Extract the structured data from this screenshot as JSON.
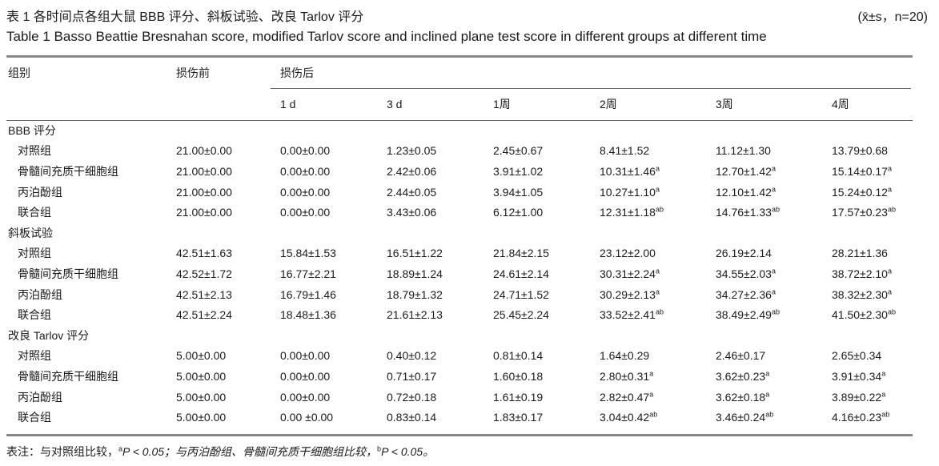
{
  "title": {
    "cn": "表 1   各时间点各组大鼠 BBB 评分、斜板试验、改良 Tarlov 评分",
    "stat": "(x̄±s，n=20)",
    "en": "Table 1   Basso Beattie Bresnahan score, modified Tarlov score and inclined plane test score in different groups at different time"
  },
  "header": {
    "group": "组别",
    "pre": "损伤前",
    "post": "损伤后",
    "times": [
      "1 d",
      "3 d",
      "1周",
      "2周",
      "3周",
      "4周"
    ]
  },
  "sections": [
    {
      "name": "BBB 评分",
      "rows": [
        {
          "group": "对照组",
          "values": [
            "21.00±0.00",
            "0.00±0.00",
            "1.23±0.05",
            "2.45±0.67",
            "8.41±1.52",
            "11.12±1.30",
            "13.79±0.68"
          ],
          "sups": [
            "",
            "",
            "",
            "",
            "",
            "",
            ""
          ]
        },
        {
          "group": "骨髓间充质干细胞组",
          "values": [
            "21.00±0.00",
            "0.00±0.00",
            "2.42±0.06",
            "3.91±1.02",
            "10.31±1.46",
            "12.70±1.42",
            "15.14±0.17"
          ],
          "sups": [
            "",
            "",
            "",
            "",
            "a",
            "a",
            "a"
          ]
        },
        {
          "group": "丙泊酚组",
          "values": [
            "21.00±0.00",
            "0.00±0.00",
            "2.44±0.05",
            "3.94±1.05",
            "10.27±1.10",
            "12.10±1.42",
            "15.24±0.12"
          ],
          "sups": [
            "",
            "",
            "",
            "",
            "a",
            "a",
            "a"
          ]
        },
        {
          "group": "联合组",
          "values": [
            "21.00±0.00",
            "0.00±0.00",
            "3.43±0.06",
            "6.12±1.00",
            "12.31±1.18",
            "14.76±1.33",
            "17.57±0.23"
          ],
          "sups": [
            "",
            "",
            "",
            "",
            "ab",
            "ab",
            "ab"
          ]
        }
      ]
    },
    {
      "name": "斜板试验",
      "rows": [
        {
          "group": "对照组",
          "values": [
            "42.51±1.63",
            "15.84±1.53",
            "16.51±1.22",
            "21.84±2.15",
            "23.12±2.00",
            "26.19±2.14",
            "28.21±1.36"
          ],
          "sups": [
            "",
            "",
            "",
            "",
            "",
            "",
            ""
          ]
        },
        {
          "group": "骨髓间充质干细胞组",
          "values": [
            "42.52±1.72",
            "16.77±2.21",
            "18.89±1.24",
            "24.61±2.14",
            "30.31±2.24",
            "34.55±2.03",
            "38.72±2.10"
          ],
          "sups": [
            "",
            "",
            "",
            "",
            "a",
            "a",
            "a"
          ]
        },
        {
          "group": "丙泊酚组",
          "values": [
            "42.51±2.13",
            "16.79±1.46",
            "18.79±1.32",
            "24.71±1.52",
            "30.29±2.13",
            "34.27±2.36",
            "38.32±2.30"
          ],
          "sups": [
            "",
            "",
            "",
            "",
            "a",
            "a",
            "a"
          ]
        },
        {
          "group": "联合组",
          "values": [
            "42.51±2.24",
            "18.48±1.36",
            "21.61±2.13",
            "25.45±2.24",
            "33.52±2.41",
            "38.49±2.49",
            "41.50±2.30"
          ],
          "sups": [
            "",
            "",
            "",
            "",
            "ab",
            "ab",
            "ab"
          ]
        }
      ]
    },
    {
      "name": "改良 Tarlov  评分",
      "rows": [
        {
          "group": "对照组",
          "values": [
            "5.00±0.00",
            "0.00±0.00",
            "0.40±0.12",
            "0.81±0.14",
            "1.64±0.29",
            "2.46±0.17",
            "2.65±0.34"
          ],
          "sups": [
            "",
            "",
            "",
            "",
            "",
            "",
            ""
          ]
        },
        {
          "group": "骨髓间充质干细胞组",
          "values": [
            "5.00±0.00",
            "0.00±0.00",
            "0.71±0.17",
            "1.60±0.18",
            "2.80±0.31",
            "3.62±0.23",
            "3.91±0.34"
          ],
          "sups": [
            "",
            "",
            "",
            "",
            "a",
            "a",
            "a"
          ]
        },
        {
          "group": "丙泊酚组",
          "values": [
            "5.00±0.00",
            "0.00±0.00",
            "0.72±0.18",
            "1.61±0.19",
            "2.82±0.47",
            "3.62±0.18",
            "3.89±0.22"
          ],
          "sups": [
            "",
            "",
            "",
            "",
            "a",
            "a",
            "a"
          ]
        },
        {
          "group": "联合组",
          "values": [
            "5.00±0.00",
            "0.00 ±0.00",
            "0.83±0.14",
            "1.83±0.17",
            "3.04±0.42",
            "3.46±0.24",
            "4.16±0.23"
          ],
          "sups": [
            "",
            "",
            "",
            "",
            "ab",
            "ab",
            "ab"
          ]
        }
      ]
    }
  ],
  "note": {
    "prefix": "表注：与对照组比较，",
    "sup_a": "a",
    "p1": "P < 0.05；与丙泊酚组、骨髓间充质干细胞组比较，",
    "sup_b": "b",
    "p2": "P < 0.05。"
  }
}
